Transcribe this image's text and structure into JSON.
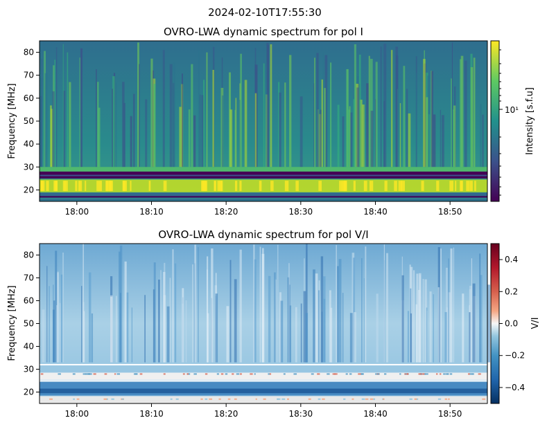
{
  "suptitle": "2024-02-10T17:55:30",
  "chart_data": [
    {
      "type": "heatmap",
      "title": "OVRO-LWA dynamic spectrum for pol I",
      "xlabel": "",
      "ylabel": "Frequency [MHz]",
      "xlim": [
        "17:55",
        "18:55"
      ],
      "ylim": [
        15,
        85
      ],
      "x_ticks": [
        "18:00",
        "18:10",
        "18:20",
        "18:30",
        "18:40",
        "18:50"
      ],
      "y_ticks": [
        20,
        30,
        40,
        50,
        60,
        70,
        80
      ],
      "colormap": "viridis",
      "colorbar": {
        "label": "Intensity [s.f.u]",
        "scale": "log",
        "major_tick_label": "10¹",
        "major_tick_value": 10
      },
      "features": {
        "flagged_band_mhz": [
          25,
          28
        ],
        "bright_band_mhz": [
          19,
          24
        ],
        "grid": false
      }
    },
    {
      "type": "heatmap",
      "title": "OVRO-LWA dynamic spectrum for pol V/I",
      "xlabel": "",
      "ylabel": "Frequency [MHz]",
      "xlim": [
        "17:55",
        "18:55"
      ],
      "ylim": [
        15,
        85
      ],
      "x_ticks": [
        "18:00",
        "18:10",
        "18:20",
        "18:30",
        "18:40",
        "18:50"
      ],
      "y_ticks": [
        20,
        30,
        40,
        50,
        60,
        70,
        80
      ],
      "colormap": "RdBu_r",
      "colorbar": {
        "label": "V/I",
        "scale": "linear",
        "range": [
          -0.5,
          0.5
        ],
        "ticks": [
          0.4,
          0.2,
          0.0,
          -0.2,
          -0.4
        ],
        "tick_labels": [
          "0.4",
          "0.2",
          "0.0",
          "−0.2",
          "−0.4"
        ]
      },
      "features": {
        "white_line_mhz": 32,
        "grid": false
      }
    }
  ]
}
